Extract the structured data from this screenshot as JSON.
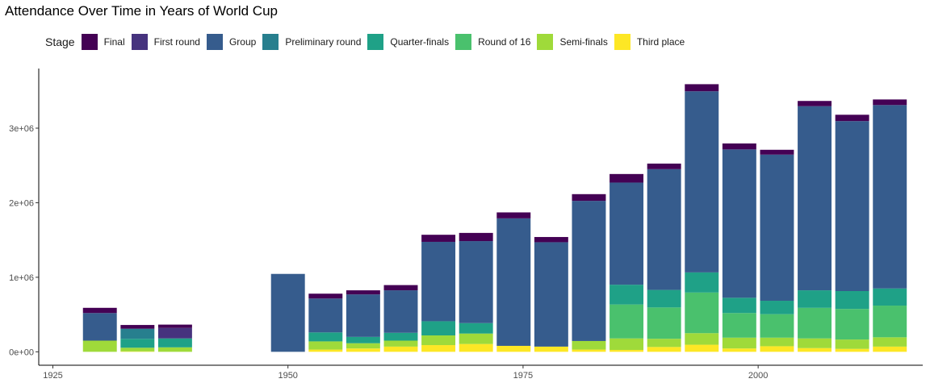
{
  "chart_data": {
    "type": "bar",
    "stacked": true,
    "title": "Attendance Over Time in Years of World Cup",
    "xlabel": "",
    "ylabel": "",
    "legend_title": "Stage",
    "legend_position": "top",
    "x_ticks": [
      {
        "value": 1925,
        "label": "1925"
      },
      {
        "value": 1950,
        "label": "1950"
      },
      {
        "value": 1975,
        "label": "1975"
      },
      {
        "value": 2000,
        "label": "2000"
      }
    ],
    "y_ticks": [
      {
        "value": 0,
        "label": "0e+00"
      },
      {
        "value": 1000000,
        "label": "1e+06"
      },
      {
        "value": 2000000,
        "label": "2e+06"
      },
      {
        "value": 3000000,
        "label": "3e+06"
      }
    ],
    "xlim": [
      1923.5,
      2017.5
    ],
    "ylim": [
      -180000,
      3800000
    ],
    "bar_width_years": 3.6,
    "categories": [
      1930,
      1934,
      1938,
      1950,
      1954,
      1958,
      1962,
      1966,
      1970,
      1974,
      1978,
      1982,
      1986,
      1990,
      1994,
      1998,
      2002,
      2006,
      2010,
      2014
    ],
    "series": [
      {
        "name": "Third place",
        "color": "#FDE725",
        "values": [
          0,
          5000,
          0,
          0,
          30000,
          45000,
          70000,
          90000,
          105000,
          80000,
          70000,
          30000,
          25000,
          65000,
          95000,
          45000,
          75000,
          50000,
          40000,
          70000
        ]
      },
      {
        "name": "Semi-finals",
        "color": "#9FDA3A",
        "values": [
          150000,
          50000,
          60000,
          0,
          110000,
          70000,
          80000,
          130000,
          140000,
          0,
          0,
          115000,
          155000,
          110000,
          155000,
          145000,
          115000,
          130000,
          125000,
          125000
        ]
      },
      {
        "name": "Round of 16",
        "color": "#4AC16D",
        "values": [
          0,
          0,
          0,
          0,
          0,
          0,
          0,
          0,
          0,
          0,
          0,
          0,
          455000,
          420000,
          545000,
          330000,
          315000,
          410000,
          410000,
          425000
        ]
      },
      {
        "name": "Quarter-finals",
        "color": "#1FA187",
        "values": [
          0,
          120000,
          120000,
          0,
          120000,
          85000,
          105000,
          190000,
          140000,
          0,
          0,
          0,
          265000,
          235000,
          270000,
          205000,
          180000,
          235000,
          240000,
          230000
        ]
      },
      {
        "name": "Preliminary round",
        "color": "#277F8E",
        "values": [
          0,
          135000,
          0,
          0,
          0,
          0,
          0,
          0,
          0,
          0,
          0,
          0,
          0,
          0,
          0,
          0,
          0,
          0,
          0,
          0
        ]
      },
      {
        "name": "Group",
        "color": "#365C8D",
        "values": [
          370000,
          0,
          0,
          1045000,
          455000,
          570000,
          570000,
          1065000,
          1100000,
          1710000,
          1400000,
          1880000,
          1370000,
          1620000,
          2430000,
          1990000,
          1960000,
          2470000,
          2280000,
          2460000
        ]
      },
      {
        "name": "First round",
        "color": "#46337E",
        "values": [
          0,
          0,
          140000,
          0,
          0,
          0,
          0,
          0,
          0,
          0,
          0,
          0,
          0,
          0,
          0,
          0,
          0,
          0,
          0,
          0
        ]
      },
      {
        "name": "Final",
        "color": "#440154",
        "values": [
          70000,
          50000,
          45000,
          0,
          65000,
          55000,
          70000,
          95000,
          110000,
          80000,
          70000,
          90000,
          115000,
          75000,
          95000,
          80000,
          65000,
          70000,
          85000,
          75000
        ]
      }
    ],
    "legend_order": [
      "Final",
      "First round",
      "Group",
      "Preliminary round",
      "Quarter-finals",
      "Round of 16",
      "Semi-finals",
      "Third place"
    ]
  }
}
